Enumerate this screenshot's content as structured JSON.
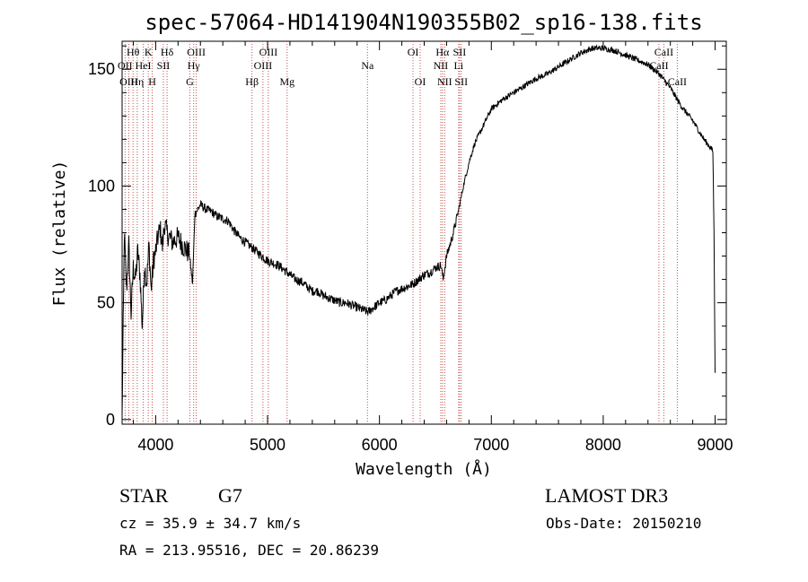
{
  "chart_data": {
    "type": "line",
    "title": "spec-57064-HD141904N190355B02_sp16-138.fits",
    "xlabel": "Wavelength (Å)",
    "ylabel": "Flux (relative)",
    "xlim": [
      3700,
      9100
    ],
    "ylim": [
      -2,
      162
    ],
    "x_ticks": [
      4000,
      5000,
      6000,
      7000,
      8000,
      9000
    ],
    "y_ticks": [
      0,
      50,
      100,
      150
    ],
    "grid": false,
    "x": [
      3700,
      3720,
      3740,
      3760,
      3780,
      3800,
      3820,
      3840,
      3860,
      3880,
      3900,
      3920,
      3940,
      3960,
      3980,
      4000,
      4020,
      4040,
      4060,
      4080,
      4100,
      4150,
      4200,
      4250,
      4300,
      4330,
      4350,
      4400,
      4450,
      4500,
      4550,
      4600,
      4650,
      4700,
      4750,
      4800,
      4850,
      4900,
      4950,
      5000,
      5050,
      5100,
      5150,
      5200,
      5250,
      5300,
      5350,
      5400,
      5450,
      5500,
      5550,
      5600,
      5650,
      5700,
      5750,
      5800,
      5850,
      5900,
      5950,
      6000,
      6050,
      6100,
      6150,
      6200,
      6250,
      6300,
      6350,
      6400,
      6450,
      6500,
      6550,
      6570,
      6600,
      6650,
      6700,
      6750,
      6800,
      6850,
      6900,
      6950,
      7000,
      7100,
      7200,
      7300,
      7400,
      7500,
      7600,
      7700,
      7800,
      7900,
      8000,
      8100,
      8200,
      8300,
      8400,
      8500,
      8600,
      8700,
      8800,
      8900,
      8950,
      8980,
      8990,
      9000
    ],
    "y": [
      0,
      80,
      55,
      75,
      45,
      65,
      60,
      72,
      62,
      40,
      66,
      58,
      75,
      55,
      68,
      72,
      78,
      82,
      74,
      84,
      80,
      76,
      78,
      74,
      71,
      58,
      88,
      92,
      90,
      89,
      87,
      86,
      85,
      81,
      78,
      76,
      74,
      72,
      70,
      68,
      67,
      66,
      64,
      62,
      60,
      59,
      57,
      55,
      55,
      53,
      52,
      51,
      50,
      50,
      49,
      48,
      47,
      46,
      48,
      50,
      51,
      53,
      55,
      56,
      57,
      58,
      60,
      62,
      63,
      65,
      66,
      60,
      70,
      78,
      88,
      100,
      110,
      118,
      123,
      128,
      133,
      137,
      140,
      143,
      146,
      148,
      151,
      154,
      157,
      159,
      159,
      158,
      156,
      154,
      152,
      148,
      142,
      134,
      128,
      120,
      117,
      115,
      80,
      20
    ],
    "lines": [
      {
        "label": "Hθ",
        "x": 3798,
        "row": 1
      },
      {
        "label": "OII",
        "x": 3727,
        "row": 2
      },
      {
        "label": "OIII",
        "x": 3760,
        "row": 3
      },
      {
        "label": "K",
        "x": 3934,
        "row": 1
      },
      {
        "label": "Hη",
        "x": 3835,
        "row": 3
      },
      {
        "label": "HeI",
        "x": 3889,
        "row": 2
      },
      {
        "label": "H",
        "x": 3969,
        "row": 3
      },
      {
        "label": "Hδ",
        "x": 4102,
        "row": 1
      },
      {
        "label": "SII",
        "x": 4069,
        "row": 2
      },
      {
        "label": "OIII",
        "x": 4363,
        "row": 1
      },
      {
        "label": "Hγ",
        "x": 4340,
        "row": 2
      },
      {
        "label": "G",
        "x": 4305,
        "row": 3
      },
      {
        "label": "OIII",
        "x": 5007,
        "row": 1
      },
      {
        "label": "OIII",
        "x": 4959,
        "row": 2
      },
      {
        "label": "Hβ",
        "x": 4861,
        "row": 3
      },
      {
        "label": "Mg",
        "x": 5175,
        "row": 3
      },
      {
        "label": "Na",
        "x": 5893,
        "row": 2
      },
      {
        "label": "OI",
        "x": 6300,
        "row": 1
      },
      {
        "label": "OI",
        "x": 6364,
        "row": 3
      },
      {
        "label": "Hα",
        "x": 6563,
        "row": 1
      },
      {
        "label": "SII",
        "x": 6716,
        "row": 1
      },
      {
        "label": "NII",
        "x": 6548,
        "row": 2
      },
      {
        "label": "Li",
        "x": 6708,
        "row": 2
      },
      {
        "label": "NII",
        "x": 6583,
        "row": 3
      },
      {
        "label": "SII",
        "x": 6731,
        "row": 3
      },
      {
        "label": "CaII",
        "x": 8542,
        "row": 1
      },
      {
        "label": "CaII",
        "x": 8498,
        "row": 2
      },
      {
        "label": "CaII",
        "x": 8662,
        "row": 3
      }
    ]
  },
  "info": {
    "object_type": "STAR",
    "subclass": "G7",
    "survey": "LAMOST DR3",
    "cz": "cz = 35.9 ± 34.7 km/s",
    "obs_date": "Obs-Date: 20150210",
    "radec": "RA = 213.95516, DEC =  20.86239"
  }
}
